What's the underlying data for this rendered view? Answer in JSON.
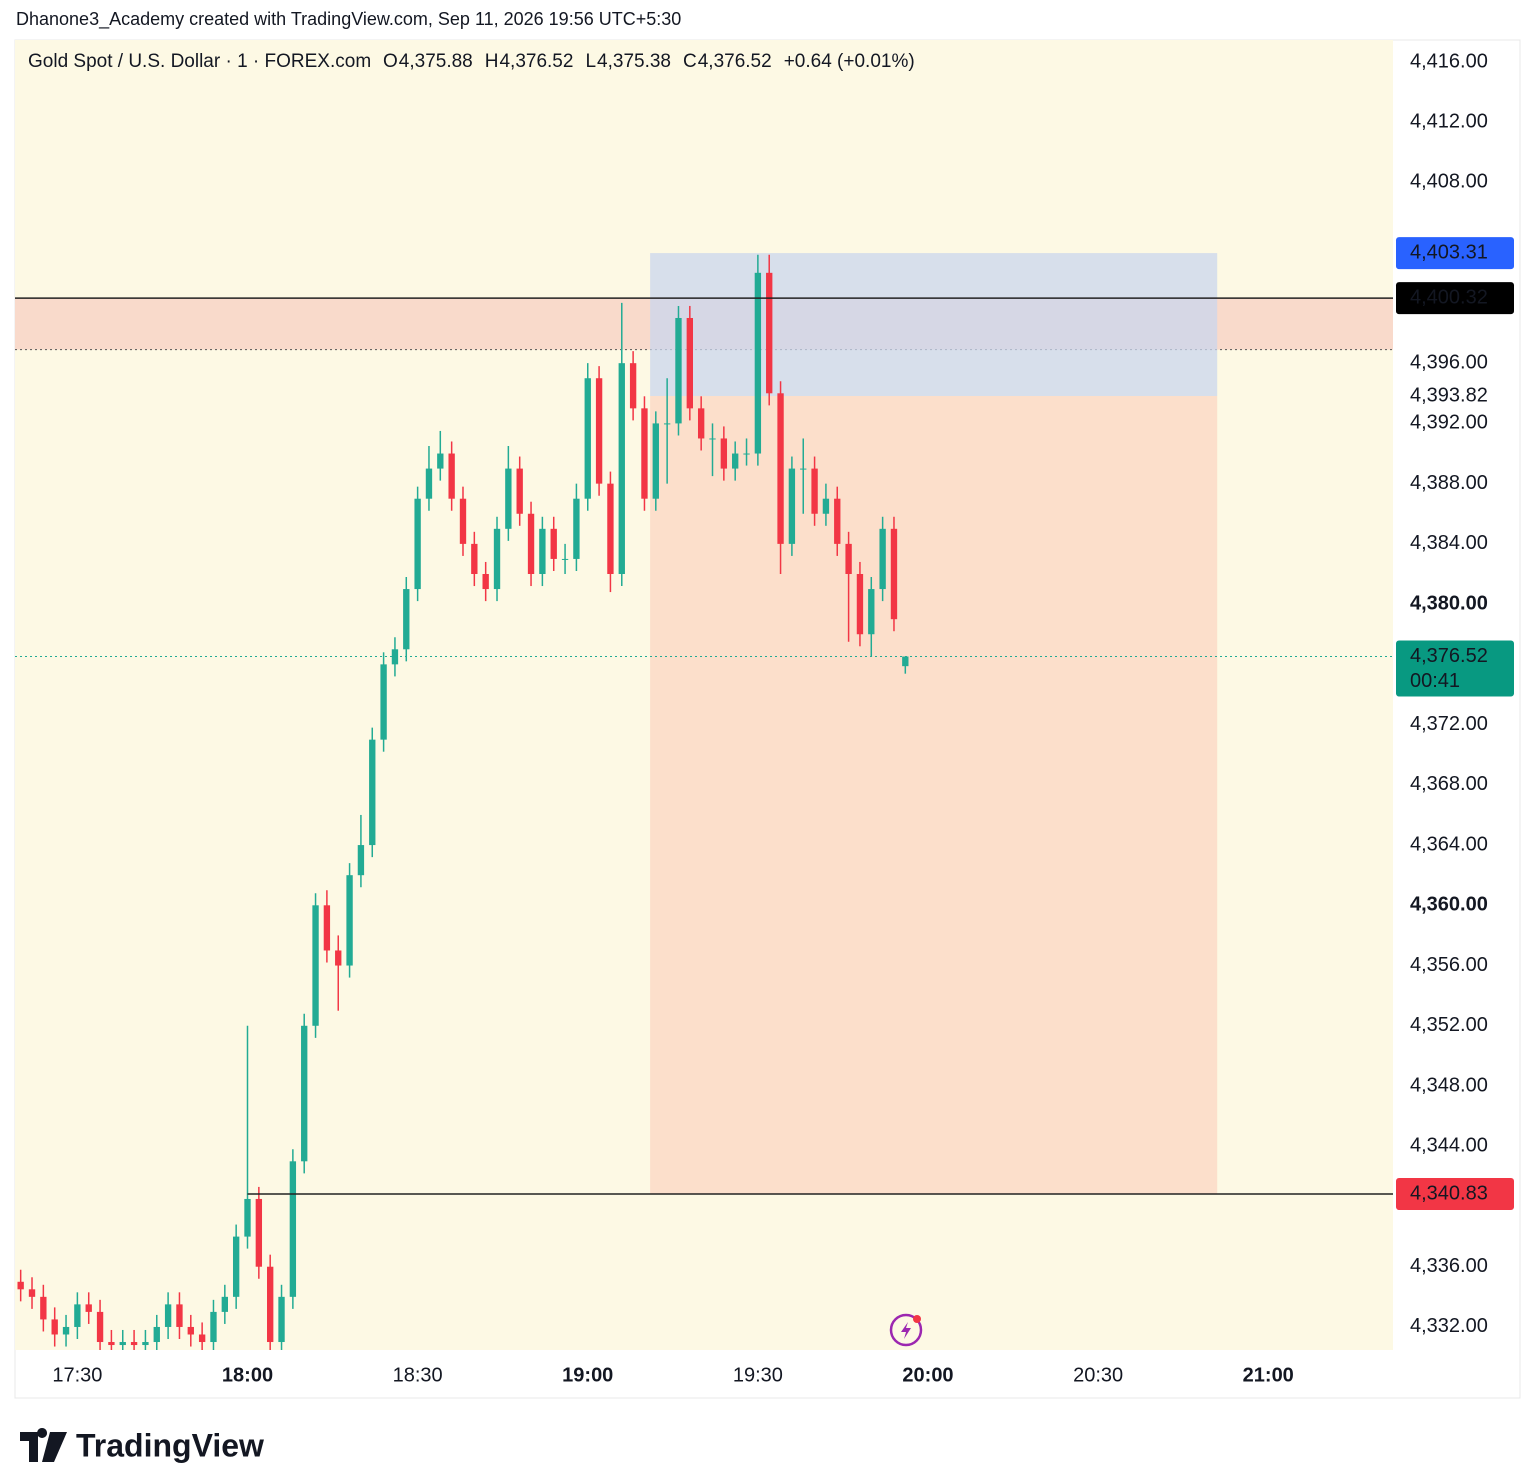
{
  "header": {
    "caption": "Dhanone3_Academy created with TradingView.com, Sep 11, 2026 19:56 UTC+5:30"
  },
  "legend": {
    "symbol": "Gold Spot / U.S. Dollar · 1 · FOREX.com",
    "items": [
      {
        "key": "O",
        "value": "4,375.88"
      },
      {
        "key": "H",
        "value": "4,376.52"
      },
      {
        "key": "L",
        "value": "4,375.38"
      },
      {
        "key": "C",
        "value": "4,376.52"
      }
    ],
    "change": "+0.64 (+0.01%)"
  },
  "footer": {
    "brand": "TradingView"
  },
  "chart_data": {
    "type": "candlestick",
    "up_color": "#22ab94",
    "down_color": "#f23645",
    "xlim": [
      "17:19",
      "21:22"
    ],
    "ylim": [
      4330.47,
      4417.46
    ],
    "xticks": [
      "17:30",
      "18:00",
      "18:30",
      "19:00",
      "19:30",
      "20:00",
      "20:30",
      "21:00"
    ],
    "yticks": [
      {
        "value": 4416,
        "label": "4,416.00"
      },
      {
        "value": 4412,
        "label": "4,412.00"
      },
      {
        "value": 4408,
        "label": "4,408.00"
      },
      {
        "value": 4396,
        "label": "4,396.00"
      },
      {
        "value": 4393.82,
        "label": "4,393.82"
      },
      {
        "value": 4392,
        "label": "4,392.00"
      },
      {
        "value": 4388,
        "label": "4,388.00"
      },
      {
        "value": 4384,
        "label": "4,384.00"
      },
      {
        "value": 4380,
        "label": "4,380.00"
      },
      {
        "value": 4372,
        "label": "4,372.00"
      },
      {
        "value": 4368,
        "label": "4,368.00"
      },
      {
        "value": 4364,
        "label": "4,364.00"
      },
      {
        "value": 4360,
        "label": "4,360.00"
      },
      {
        "value": 4356,
        "label": "4,356.00"
      },
      {
        "value": 4352,
        "label": "4,352.00"
      },
      {
        "value": 4348,
        "label": "4,348.00"
      },
      {
        "value": 4344,
        "label": "4,344.00"
      },
      {
        "value": 4336,
        "label": "4,336.00"
      },
      {
        "value": 4332,
        "label": "4,332.00"
      }
    ],
    "price_labels": [
      {
        "value": 4403.31,
        "label": "4,403.31",
        "color": "#2962ff"
      },
      {
        "value": 4400.32,
        "label": "4,400.32",
        "color": "#000000"
      },
      {
        "value": 4376.52,
        "label": "4,376.52",
        "sub": "00:41",
        "color": "#089981"
      },
      {
        "value": 4340.83,
        "label": "4,340.83",
        "color": "#f23645"
      }
    ],
    "zone": {
      "low": 4396.9,
      "high": 4400.32
    },
    "levels": [
      {
        "value": 4400.32,
        "start": "17:19"
      },
      {
        "value": 4340.83,
        "start": "18:00"
      }
    ],
    "position": {
      "start": "19:11",
      "end": "20:51",
      "stop": 4403.31,
      "entry": 4393.82,
      "target": 4340.83
    },
    "x": [
      "17:20",
      "17:22",
      "17:24",
      "17:26",
      "17:28",
      "17:30",
      "17:32",
      "17:34",
      "17:36",
      "17:38",
      "17:40",
      "17:42",
      "17:44",
      "17:46",
      "17:48",
      "17:50",
      "17:52",
      "17:54",
      "17:56",
      "17:58",
      "18:00",
      "18:02",
      "18:04",
      "18:06",
      "18:08",
      "18:10",
      "18:12",
      "18:14",
      "18:16",
      "18:18",
      "18:20",
      "18:22",
      "18:24",
      "18:26",
      "18:28",
      "18:30",
      "18:32",
      "18:34",
      "18:36",
      "18:38",
      "18:40",
      "18:42",
      "18:44",
      "18:46",
      "18:48",
      "18:50",
      "18:52",
      "18:54",
      "18:56",
      "18:58",
      "19:00",
      "19:02",
      "19:04",
      "19:06",
      "19:08",
      "19:10",
      "19:12",
      "19:14",
      "19:16",
      "19:18",
      "19:20",
      "19:22",
      "19:24",
      "19:26",
      "19:28",
      "19:30",
      "19:32",
      "19:34",
      "19:36",
      "19:38",
      "19:40",
      "19:42",
      "19:44",
      "19:46",
      "19:48",
      "19:50",
      "19:52",
      "19:54",
      "19:56"
    ],
    "open": [
      4335,
      4334.5,
      4334,
      4332.5,
      4331.5,
      4332,
      4333.5,
      4333,
      4331,
      4330.8,
      4331,
      4330.8,
      4331,
      4332,
      4333.5,
      4332,
      4331.5,
      4331,
      4333,
      4334,
      4338,
      4340.5,
      4336,
      4331,
      4334,
      4343,
      4352,
      4360,
      4357,
      4356,
      4362,
      4364,
      4371,
      4376,
      4377,
      4381,
      4387,
      4389,
      4390,
      4387,
      4384,
      4382,
      4381,
      4385,
      4389,
      4386,
      4382,
      4385,
      4383,
      4383,
      4387,
      4395,
      4388,
      4382,
      4396,
      4393,
      4387,
      4392,
      4392,
      4399,
      4393,
      4391,
      4391,
      4389,
      4390,
      4390,
      4402,
      4394,
      4384,
      4389,
      4389,
      4386,
      4387,
      4384,
      4382,
      4378,
      4381,
      4385,
      4375.88
    ],
    "high": [
      4335.8,
      4335.3,
      4334.8,
      4333.3,
      4332.8,
      4334.3,
      4334.3,
      4333.8,
      4331.8,
      4331.8,
      4331.8,
      4331.8,
      4332.8,
      4334.3,
      4334.3,
      4332.8,
      4332.3,
      4333.8,
      4334.8,
      4338.8,
      4352,
      4341.3,
      4336.8,
      4334.8,
      4343.8,
      4352.8,
      4360.8,
      4361,
      4358,
      4362.8,
      4366,
      4371.8,
      4376.8,
      4377.8,
      4381.8,
      4387.8,
      4390.5,
      4391.5,
      4390.8,
      4387.8,
      4384.8,
      4382.8,
      4385.8,
      4390.5,
      4389.8,
      4386.8,
      4385.8,
      4385.8,
      4384,
      4388,
      4396,
      4395.8,
      4388.8,
      4400,
      4396.8,
      4393.8,
      4392.8,
      4395,
      4399.8,
      4399.8,
      4393.8,
      4392,
      4391.8,
      4390.8,
      4391,
      4403.2,
      4403.2,
      4394.8,
      4389.8,
      4391,
      4389.8,
      4388,
      4387.8,
      4384.8,
      4382.8,
      4381.8,
      4385.8,
      4385.8,
      4376.52
    ],
    "low": [
      4333.7,
      4333.2,
      4331.7,
      4330.7,
      4330.7,
      4331.2,
      4332.2,
      4330.2,
      4330,
      4330,
      4330,
      4330,
      4330.2,
      4331.2,
      4331.2,
      4330.7,
      4330.2,
      4330.2,
      4332.2,
      4333.2,
      4337.2,
      4335.2,
      4330,
      4330.2,
      4333.2,
      4342.2,
      4351.2,
      4356.2,
      4353,
      4355.2,
      4361.2,
      4363.2,
      4370.2,
      4375.2,
      4376.2,
      4380.2,
      4386.2,
      4388.2,
      4386.2,
      4383.2,
      4381.2,
      4380.2,
      4380.2,
      4384.2,
      4385.2,
      4381.2,
      4381.2,
      4382.2,
      4382,
      4382.2,
      4386.2,
      4387.2,
      4380.8,
      4381.2,
      4392.2,
      4386.2,
      4386.2,
      4388,
      4391.2,
      4392.2,
      4390.2,
      4388.5,
      4388.2,
      4388.2,
      4389.2,
      4389.2,
      4393.2,
      4382,
      4383.2,
      4386,
      4385.2,
      4385.2,
      4383.2,
      4377.5,
      4377.2,
      4376.5,
      4380.2,
      4378.2,
      4375.38
    ],
    "close": [
      4334.5,
      4334,
      4332.5,
      4331.5,
      4332,
      4333.5,
      4333,
      4331,
      4330.8,
      4331,
      4330.8,
      4331,
      4332,
      4333.5,
      4332,
      4331.5,
      4331,
      4333,
      4334,
      4338,
      4340.5,
      4336,
      4331,
      4334,
      4343,
      4352,
      4360,
      4357,
      4356,
      4362,
      4364,
      4371,
      4376,
      4377,
      4381,
      4387,
      4389,
      4390,
      4387,
      4384,
      4382,
      4381,
      4385,
      4389,
      4386,
      4382,
      4385,
      4383,
      4383,
      4387,
      4395,
      4388,
      4382,
      4396,
      4393,
      4387,
      4392,
      4392,
      4399,
      4393,
      4391,
      4391,
      4389,
      4390,
      4390,
      4402,
      4394,
      4384,
      4389,
      4389,
      4386,
      4387,
      4384,
      4382,
      4378,
      4381,
      4385,
      4379,
      4376.52
    ]
  }
}
